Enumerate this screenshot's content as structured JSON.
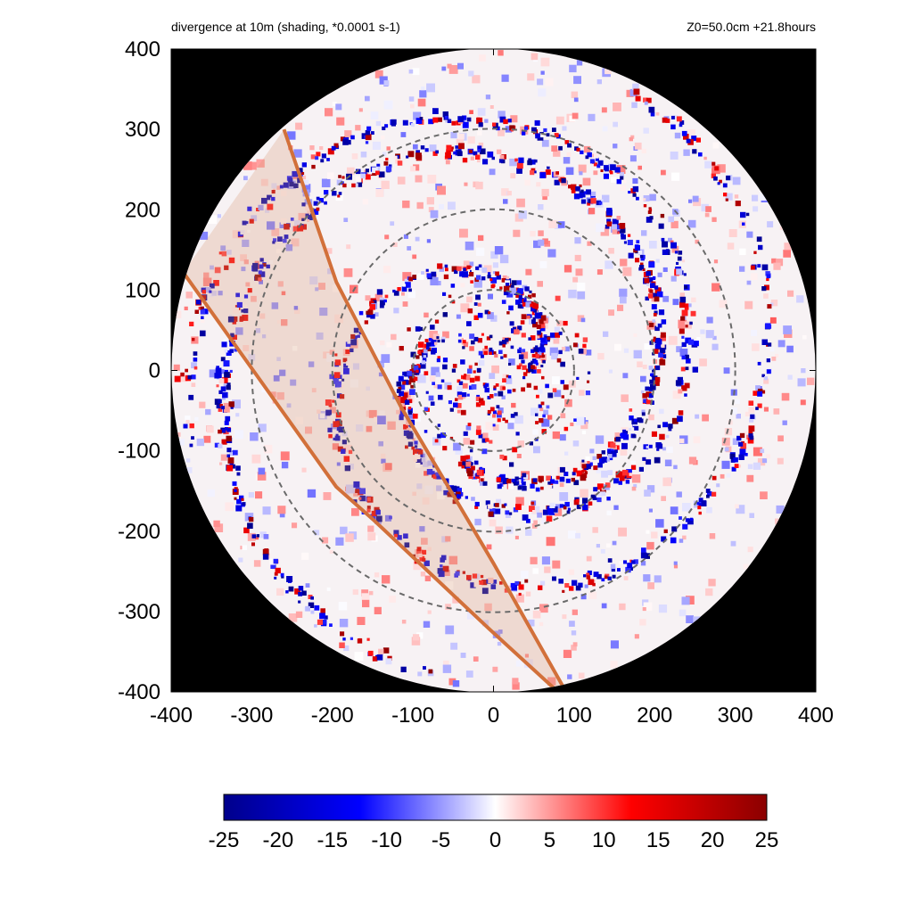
{
  "chart_data": {
    "type": "heatmap",
    "title": "divergence at 10m (shading, *0.0001 s-1)",
    "subtitle": "Z0=50.0cm  +21.8hours",
    "xlabel": "",
    "ylabel": "",
    "xlim": [
      -400,
      400
    ],
    "ylim": [
      -400,
      400
    ],
    "x_ticks": [
      -400,
      -300,
      -200,
      -100,
      0,
      100,
      200,
      300,
      400
    ],
    "y_ticks": [
      400,
      300,
      200,
      100,
      0,
      -100,
      -200,
      -300,
      -400
    ],
    "grid": false,
    "domain_radius": 400,
    "range_rings": [
      100,
      200,
      300
    ],
    "outside_domain_color": "#000000",
    "track_lines": [
      {
        "name": "",
        "x": [
          -385,
          -195,
          -150,
          -5,
          80
        ],
        "y": [
          122,
          -145,
          -185,
          -322,
          -400
        ],
        "color": "#d2703a"
      },
      {
        "name": "",
        "x": [
          -260,
          -195,
          -115,
          0,
          90
        ],
        "y": [
          300,
          110,
          -45,
          -240,
          -400
        ],
        "color": "#d2703a"
      }
    ],
    "colorbar": {
      "min": -25,
      "max": 25,
      "ticks": [
        -25,
        -20,
        -15,
        -10,
        -5,
        0,
        5,
        10,
        15,
        20,
        25
      ],
      "colors": [
        "#00008b",
        "#0000ff",
        "#ffffff",
        "#ff0000",
        "#8b0000"
      ]
    }
  }
}
